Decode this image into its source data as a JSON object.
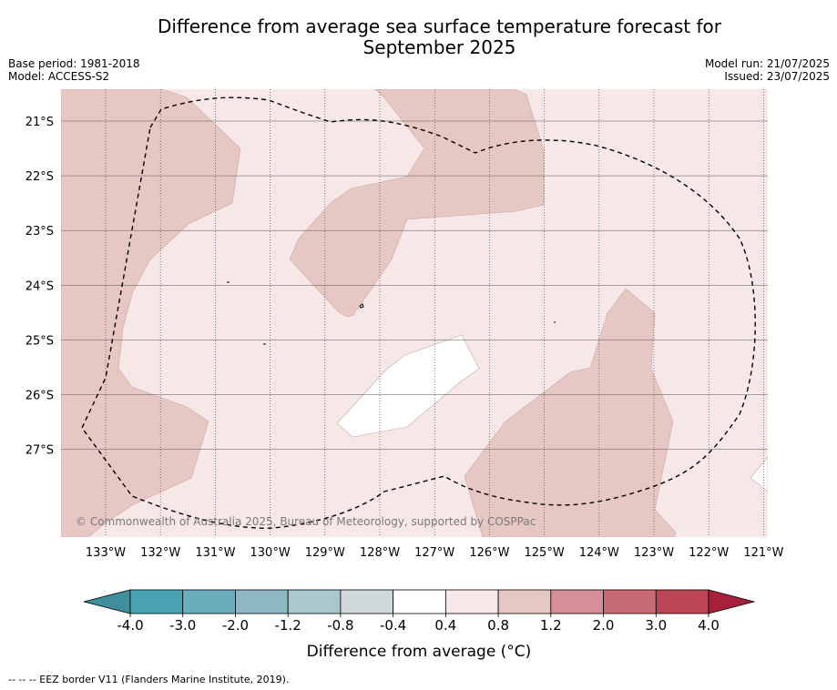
{
  "header": {
    "title_line1": "Difference from average sea surface temperature forecast for",
    "title_line2": "September 2025",
    "base_period": "Base period: 1981-2018",
    "model": "Model: ACCESS-S2",
    "model_run": "Model run: 21/07/2025",
    "issued": "Issued: 23/07/2025"
  },
  "map": {
    "copyright": "© Commonwealth of Australia 2025, Bureau of Meteorology, supported by COSPPac",
    "lon_labels": [
      "133°W",
      "132°W",
      "131°W",
      "130°W",
      "129°W",
      "128°W",
      "127°W",
      "126°W",
      "125°W",
      "124°W",
      "123°W",
      "122°W",
      "121°W"
    ],
    "lat_labels": [
      "21°S",
      "22°S",
      "23°S",
      "24°S",
      "25°S",
      "26°S",
      "27°S"
    ],
    "background_color": "#f5e8e6"
  },
  "colorbar": {
    "label": "Difference from average (°C)",
    "ticks": [
      "-4.0",
      "-3.0",
      "-2.0",
      "-1.2",
      "-0.8",
      "-0.4",
      "0.4",
      "0.8",
      "1.2",
      "2.0",
      "3.0",
      "4.0"
    ],
    "colors": [
      "#3f8e9c",
      "#4aa3b3",
      "#6badbb",
      "#8db8c4",
      "#a9c8cd",
      "#d0d8da",
      "#ffffff",
      "#f5e8e6",
      "#e7c7c3",
      "#d6909a",
      "#c86b75",
      "#bc4655",
      "#a8203b"
    ]
  },
  "footer": {
    "legend_text": "-- -- -- EEZ border V11 (Flanders Marine Institute, 2019)."
  },
  "chart_data": {
    "type": "heatmap",
    "title": "Difference from average sea surface temperature forecast for September 2025",
    "xlabel": "",
    "ylabel": "",
    "x_ticks": [
      "133°W",
      "132°W",
      "131°W",
      "130°W",
      "129°W",
      "128°W",
      "127°W",
      "126°W",
      "125°W",
      "124°W",
      "123°W",
      "122°W",
      "121°W"
    ],
    "y_ticks": [
      "21°S",
      "22°S",
      "23°S",
      "24°S",
      "25°S",
      "26°S",
      "27°S"
    ],
    "xlim_deg_west": [
      133.8,
      120.9
    ],
    "ylim_deg_south": [
      28.6,
      20.4
    ],
    "grid": true,
    "colorbar_levels": [
      -4.0,
      -3.0,
      -2.0,
      -1.2,
      -0.8,
      -0.4,
      0.4,
      0.8,
      1.2,
      2.0,
      3.0,
      4.0
    ],
    "colorbar_label": "Difference from average (°C)",
    "dominant_category": "0.4 to 0.8",
    "regions": [
      {
        "category": "0.8 to 1.2",
        "location": "western edge 133°W–131°W"
      },
      {
        "category": "0.8 to 1.2",
        "location": "north-central band 129°W–125°W, 21°S–24.5°S"
      },
      {
        "category": "0.8 to 1.2",
        "location": "south-east 126°W–123°W, 24°S–28.6°S"
      },
      {
        "category": "-0.4 to 0.4",
        "location": "central patch 128.8°W–126.5°W, 25°S–27°S"
      },
      {
        "category": "-0.4 to 0.4",
        "location": "eastern edge near 121°W, 27.5°S"
      }
    ]
  }
}
